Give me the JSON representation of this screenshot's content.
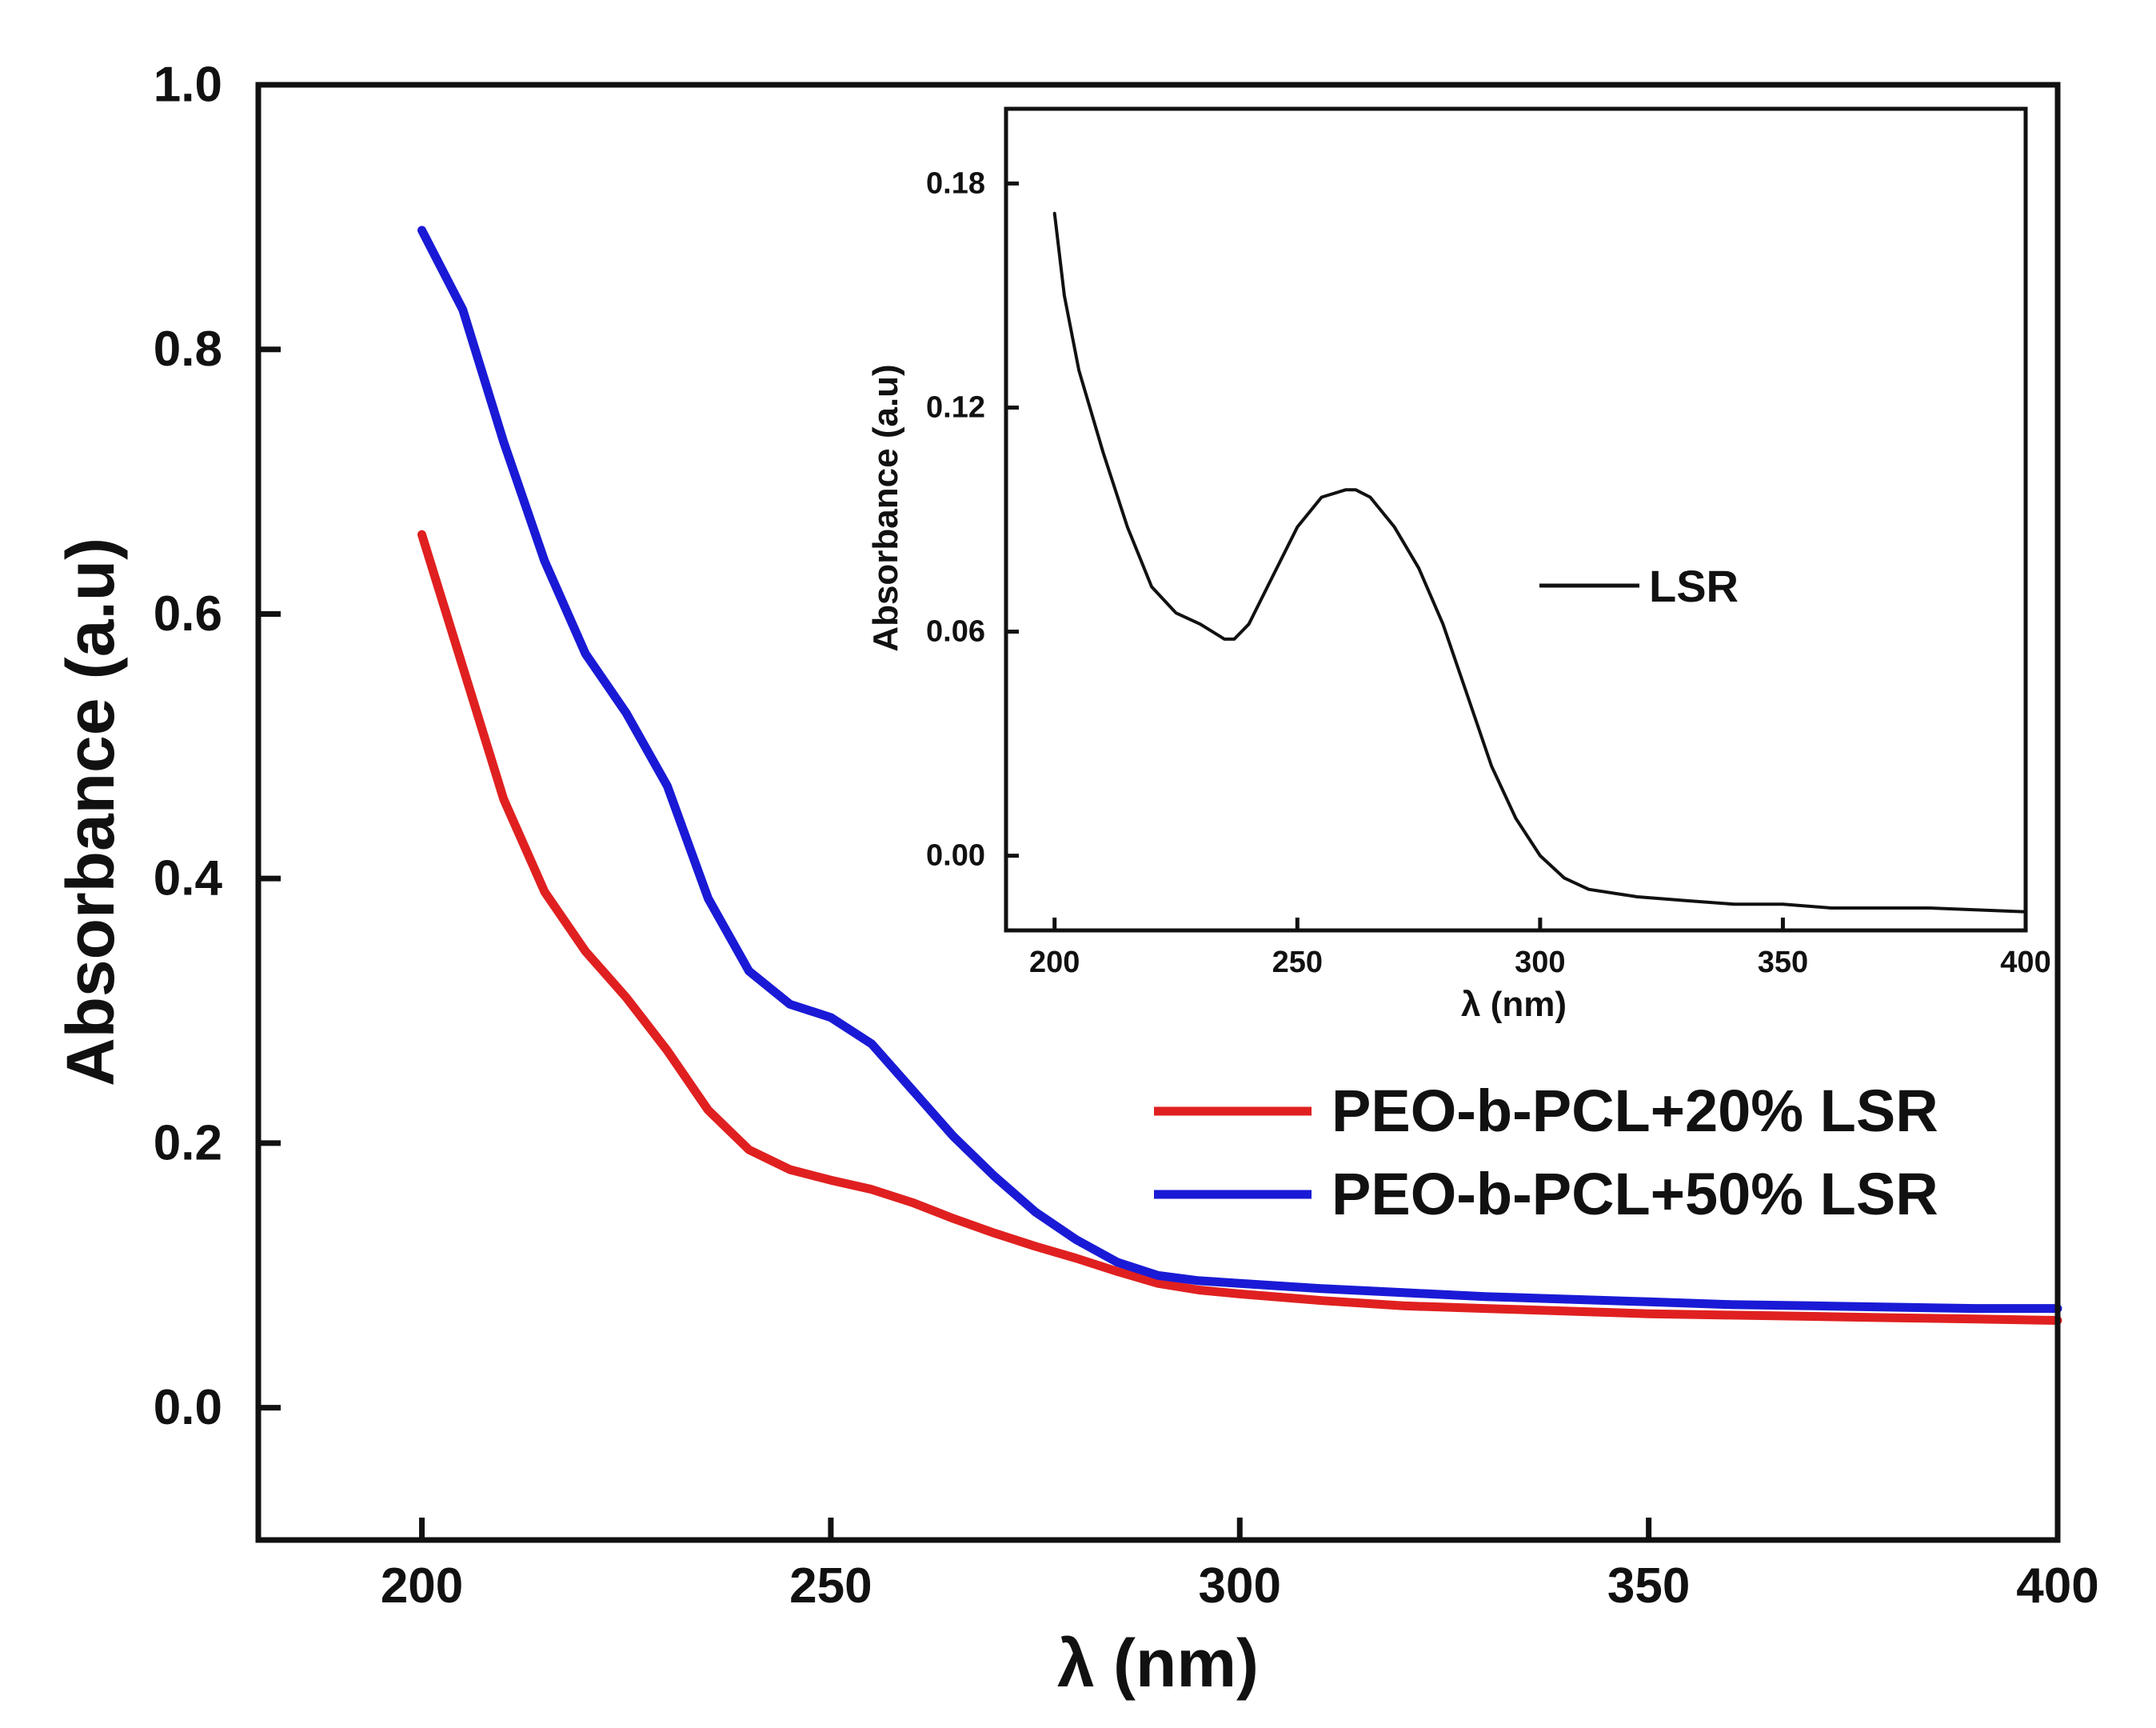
{
  "chart_data": [
    {
      "id": "main",
      "type": "line",
      "title": "",
      "xlabel": "λ (nm)",
      "ylabel": "Absorbance (a.u)",
      "xlim": [
        180,
        400
      ],
      "ylim": [
        -0.1,
        1.0
      ],
      "xticks": [
        200,
        250,
        300,
        350,
        400
      ],
      "yticks": [
        0.0,
        0.2,
        0.4,
        0.6,
        0.8,
        1.0
      ],
      "ytick_labels": [
        "0.0",
        "0.2",
        "0.4",
        "0.6",
        "0.8",
        "1.0"
      ],
      "grid": false,
      "legend_position": "lower-right",
      "series": [
        {
          "name": "PEO-b-PCL+20% LSR",
          "color": "#e02020",
          "x": [
            200,
            205,
            210,
            215,
            220,
            225,
            230,
            235,
            240,
            245,
            250,
            255,
            260,
            265,
            270,
            275,
            280,
            285,
            290,
            295,
            300,
            310,
            320,
            330,
            340,
            350,
            360,
            370,
            380,
            390,
            400
          ],
          "y": [
            0.66,
            0.56,
            0.46,
            0.39,
            0.345,
            0.31,
            0.27,
            0.225,
            0.195,
            0.18,
            0.172,
            0.165,
            0.155,
            0.143,
            0.132,
            0.122,
            0.113,
            0.103,
            0.094,
            0.089,
            0.086,
            0.081,
            0.077,
            0.075,
            0.073,
            0.071,
            0.07,
            0.069,
            0.068,
            0.067,
            0.066
          ]
        },
        {
          "name": "PEO-b-PCL+50% LSR",
          "color": "#1a1ad6",
          "x": [
            200,
            205,
            210,
            215,
            220,
            225,
            230,
            235,
            240,
            245,
            250,
            255,
            260,
            265,
            270,
            275,
            280,
            285,
            290,
            295,
            300,
            310,
            320,
            330,
            340,
            350,
            360,
            370,
            380,
            390,
            400
          ],
          "y": [
            0.89,
            0.83,
            0.73,
            0.64,
            0.57,
            0.525,
            0.47,
            0.385,
            0.33,
            0.305,
            0.295,
            0.275,
            0.24,
            0.205,
            0.175,
            0.148,
            0.127,
            0.11,
            0.1,
            0.096,
            0.094,
            0.09,
            0.087,
            0.084,
            0.082,
            0.08,
            0.078,
            0.077,
            0.076,
            0.075,
            0.075
          ]
        }
      ]
    },
    {
      "id": "inset",
      "type": "line",
      "title": "",
      "xlabel": "λ (nm)",
      "ylabel": "Absorbance (a.u)",
      "xlim": [
        190,
        400
      ],
      "ylim": [
        -0.02,
        0.2
      ],
      "xticks": [
        200,
        250,
        300,
        350,
        400
      ],
      "yticks": [
        0.0,
        0.06,
        0.12,
        0.18
      ],
      "ytick_labels": [
        "0.00",
        "0.06",
        "0.12",
        "0.18"
      ],
      "grid": false,
      "legend_position": "center-right",
      "series": [
        {
          "name": "LSR",
          "color": "#111111",
          "x": [
            200,
            202,
            205,
            210,
            215,
            220,
            225,
            230,
            235,
            237,
            240,
            245,
            250,
            255,
            260,
            262,
            265,
            270,
            275,
            280,
            285,
            290,
            295,
            300,
            305,
            310,
            320,
            330,
            340,
            350,
            360,
            380,
            400
          ],
          "y": [
            0.172,
            0.15,
            0.13,
            0.108,
            0.088,
            0.072,
            0.065,
            0.062,
            0.058,
            0.058,
            0.062,
            0.075,
            0.088,
            0.096,
            0.098,
            0.098,
            0.096,
            0.088,
            0.077,
            0.062,
            0.043,
            0.024,
            0.01,
            0.0,
            -0.006,
            -0.009,
            -0.011,
            -0.012,
            -0.013,
            -0.013,
            -0.014,
            -0.014,
            -0.015
          ]
        }
      ]
    }
  ]
}
